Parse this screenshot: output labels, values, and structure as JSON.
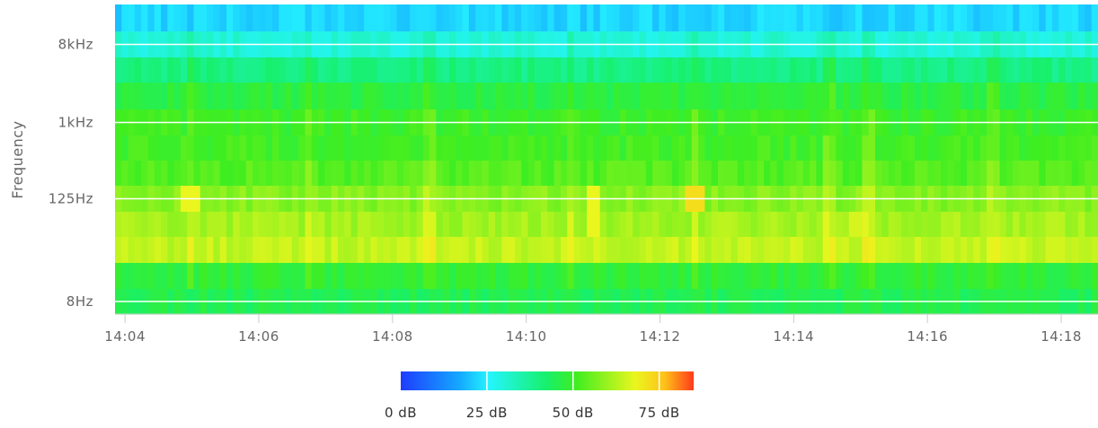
{
  "chart_data": {
    "type": "heatmap",
    "ylabel": "Frequency",
    "x_ticks": [
      "14:04",
      "14:06",
      "14:08",
      "14:10",
      "14:12",
      "14:14",
      "14:16",
      "14:18"
    ],
    "x_tick_minutes": [
      4,
      6,
      8,
      10,
      12,
      14,
      16,
      18
    ],
    "x_range_minutes": [
      3.85,
      18.55
    ],
    "y_ticks": [
      "8kHz",
      "1kHz",
      "125Hz",
      "8Hz"
    ],
    "y_bands": [
      "16kHz",
      "8kHz",
      "4kHz",
      "2kHz",
      "1kHz",
      "500Hz",
      "250Hz",
      "125Hz",
      "63Hz",
      "31.5Hz",
      "16Hz",
      "8Hz"
    ],
    "band_profile_db": [
      22,
      30,
      40,
      47,
      50,
      51,
      53,
      58,
      61,
      64,
      48,
      45
    ],
    "hotspots": [
      {
        "band": "125Hz",
        "time": "14:05",
        "db": 68
      },
      {
        "band": "125Hz",
        "time": "14:11",
        "db": 68
      },
      {
        "band": "125Hz",
        "time": "14:12:30",
        "db": 72
      },
      {
        "band": "63Hz",
        "time": "14:11",
        "db": 68
      },
      {
        "band": "63Hz",
        "time": "14:15",
        "db": 66
      }
    ],
    "colorscale": {
      "range_db": [
        0,
        85
      ],
      "ticks": [
        "0 dB",
        "25 dB",
        "50 dB",
        "75 dB"
      ],
      "tick_values": [
        0,
        25,
        50,
        75
      ],
      "colors": [
        "#1f3cff",
        "#14a8ff",
        "#25f5ff",
        "#17f06a",
        "#40ee20",
        "#eaf61e",
        "#ffc21a",
        "#ff3a1a"
      ]
    },
    "grid": true
  }
}
